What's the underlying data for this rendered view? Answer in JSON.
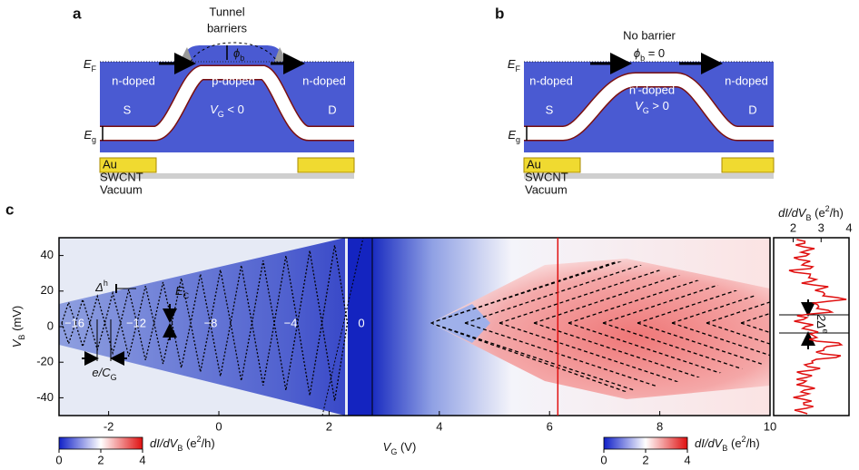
{
  "panel_a": {
    "label": "a",
    "title": [
      "Tunnel",
      "barriers"
    ],
    "fermi": {
      "main": "E",
      "sub": "F"
    },
    "barrier": {
      "main": "ϕ",
      "sub": "b"
    },
    "left_region": "n-doped",
    "middle_region": "p-doped",
    "right_region": "n-doped",
    "source": "S",
    "drain": "D",
    "gate": {
      "main": "V",
      "sub": "G",
      "rest": " < 0"
    },
    "gap": {
      "main": "E",
      "sub": "g"
    },
    "contact": "Au",
    "tube": "SWCNT",
    "vacuum": "Vacuum"
  },
  "panel_b": {
    "label": "b",
    "title": "No barrier",
    "barrier": {
      "main": "ϕ",
      "sub": "b",
      "rest": " = 0"
    },
    "fermi": {
      "main": "E",
      "sub": "F"
    },
    "left_region": "n-doped",
    "middle_region": "n′-doped",
    "right_region": "n-doped",
    "source": "S",
    "drain": "D",
    "gate": {
      "main": "V",
      "sub": "G",
      "rest": " > 0"
    },
    "gap": {
      "main": "E",
      "sub": "g"
    },
    "contact": "Au",
    "tube": "SWCNT",
    "vacuum": "Vacuum"
  },
  "panel_c": {
    "label": "c",
    "x_label": {
      "main": "V",
      "sub": "G",
      "rest": " (V)"
    },
    "y_label": {
      "main": "V",
      "sub": "B",
      "rest": " (mV)"
    },
    "xlim": [
      -2.9,
      10
    ],
    "xticks": [
      -2,
      0,
      2,
      4,
      6,
      8,
      10
    ],
    "ylim": [
      -50,
      50
    ],
    "yticks": [
      40,
      20,
      0,
      -20,
      -40
    ],
    "cut_vg": 6.15,
    "charge_states": [
      "−16",
      "−12",
      "−8",
      "−4",
      "0"
    ],
    "spacing": {
      "main": "Δ",
      "sup": "h"
    },
    "charging": {
      "main": "E",
      "sub": "C"
    },
    "period": {
      "main": "e/C",
      "sub": "G"
    },
    "trace": {
      "x_label": {
        "main": "dI/dV",
        "sub": "B",
        "open": " (e",
        "sup": "2",
        "close": "/h)"
      },
      "xlim": [
        1.3,
        4
      ],
      "xticks": [
        2,
        3,
        4
      ],
      "gap": {
        "main": "2Δ",
        "sup": "e"
      }
    },
    "colorbars": [
      {
        "lim": [
          0,
          4
        ],
        "ticks": [
          0,
          2,
          4
        ],
        "label": {
          "main": "dI/dV",
          "sub": "B",
          "open": " (e",
          "sup": "2",
          "close": "/h)"
        }
      },
      {
        "lim": [
          0,
          4
        ],
        "ticks": [
          0,
          2,
          4
        ],
        "label": {
          "main": "dI/dV",
          "sub": "B",
          "open": " (e",
          "sup": "2",
          "close": "/h)"
        }
      }
    ]
  }
}
